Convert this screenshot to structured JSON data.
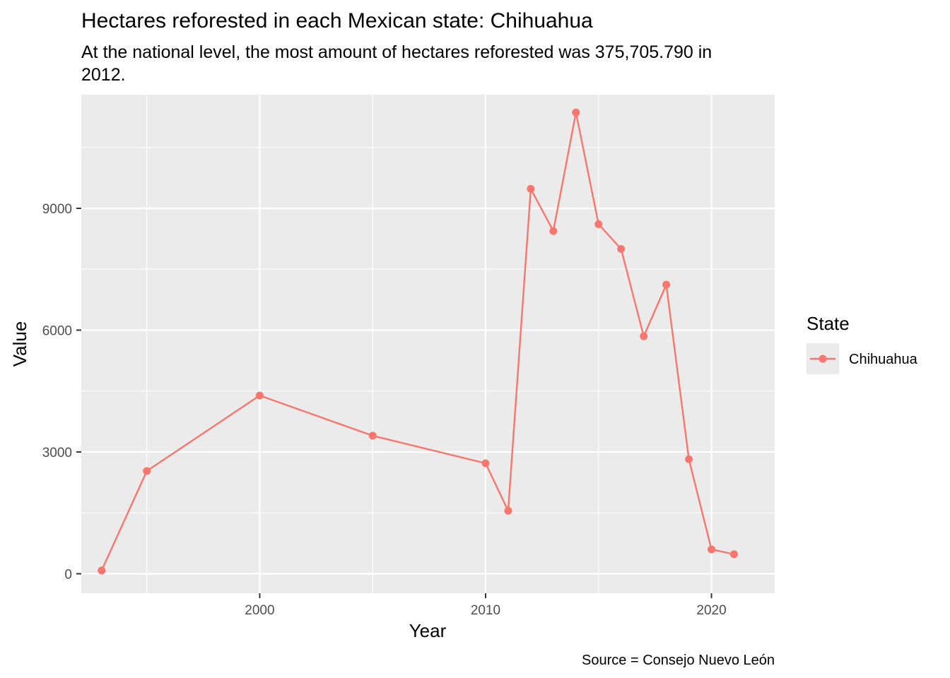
{
  "chart_data": {
    "type": "line",
    "title": "Hectares reforested in each Mexican state: Chihuahua",
    "subtitle_lines": [
      "At the national level, the most amount of hectares reforested was 375,705.790 in",
      "2012."
    ],
    "xlabel": "Year",
    "ylabel": "Value",
    "caption": "Source = Consejo Nuevo León",
    "xlim": [
      1992.1,
      2022.8
    ],
    "ylim": [
      -480,
      11800
    ],
    "x_ticks": [
      2000,
      2010,
      2020
    ],
    "y_ticks": [
      0,
      3000,
      6000,
      9000
    ],
    "x_minor_ticks": [
      1995,
      2005,
      2015
    ],
    "y_minor_ticks": [
      1500,
      4500,
      7500,
      10500
    ],
    "grid": true,
    "legend": {
      "title": "State",
      "position": "right"
    },
    "series": [
      {
        "name": "Chihuahua",
        "color": "#F8766D",
        "x": [
          1993,
          1995,
          2000,
          2005,
          2010,
          2011,
          2012,
          2013,
          2014,
          2015,
          2016,
          2017,
          2018,
          2019,
          2020,
          2021
        ],
        "values": [
          80,
          2530,
          4390,
          3400,
          2720,
          1550,
          9480,
          8440,
          11360,
          8610,
          8000,
          5850,
          7120,
          2820,
          600,
          480
        ]
      }
    ]
  }
}
